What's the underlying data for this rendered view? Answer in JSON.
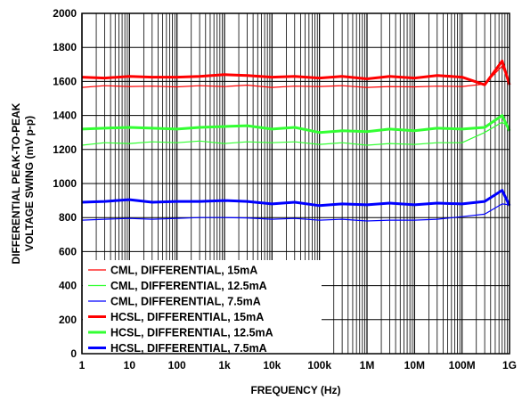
{
  "chart_data": {
    "type": "line",
    "xlabel": "FREQUENCY (Hz)",
    "ylabel_lines": [
      "DIFFERENTIAL PEAK-TO-PEAK",
      "VOLTAGE SWING (mV p-p)"
    ],
    "x_scale": "log",
    "xlim": [
      1,
      1000000000
    ],
    "ylim": [
      0,
      2000
    ],
    "x_tick_values": [
      1,
      10,
      100,
      1000,
      10000,
      100000,
      1000000,
      10000000,
      100000000,
      1000000000
    ],
    "x_tick_labels": [
      "1",
      "10",
      "100",
      "1k",
      "10k",
      "100k",
      "1M",
      "10M",
      "100M",
      "1G"
    ],
    "y_tick_values": [
      0,
      200,
      400,
      600,
      800,
      1000,
      1200,
      1400,
      1600,
      1800,
      2000
    ],
    "y_tick_labels": [
      "0",
      "200",
      "400",
      "600",
      "800",
      "1000",
      "1200",
      "1400",
      "1600",
      "1800",
      "2000"
    ],
    "grid": true,
    "legend_position": "bottom-left",
    "x": [
      1,
      3,
      10,
      30,
      100,
      300,
      1000,
      3000,
      10000,
      30000,
      100000,
      300000,
      1000000,
      3000000,
      10000000,
      30000000,
      100000000,
      300000000,
      700000000,
      1000000000
    ],
    "series": [
      {
        "name": "CML, DIFFERENTIAL, 15mA",
        "color": "#ff0000",
        "width": 1.2,
        "values": [
          1565,
          1575,
          1570,
          1572,
          1568,
          1575,
          1570,
          1578,
          1565,
          1572,
          1570,
          1575,
          1565,
          1570,
          1568,
          1572,
          1570,
          1585,
          1690,
          1595
        ]
      },
      {
        "name": "CML, DIFFERENTIAL, 12.5mA",
        "color": "#33ff33",
        "width": 1.2,
        "values": [
          1225,
          1240,
          1235,
          1245,
          1240,
          1250,
          1235,
          1245,
          1240,
          1245,
          1230,
          1240,
          1225,
          1235,
          1230,
          1240,
          1240,
          1300,
          1360,
          1330
        ]
      },
      {
        "name": "CML, DIFFERENTIAL, 7.5mA",
        "color": "#0000ff",
        "width": 1.2,
        "values": [
          785,
          790,
          795,
          790,
          795,
          800,
          800,
          798,
          790,
          795,
          785,
          790,
          780,
          785,
          785,
          790,
          805,
          820,
          880,
          875
        ]
      },
      {
        "name": "HCSL, DIFFERENTIAL, 15mA",
        "color": "#ff0000",
        "width": 3,
        "values": [
          1625,
          1620,
          1630,
          1625,
          1625,
          1630,
          1640,
          1635,
          1625,
          1630,
          1620,
          1630,
          1615,
          1630,
          1620,
          1635,
          1625,
          1580,
          1720,
          1580
        ]
      },
      {
        "name": "HCSL, DIFFERENTIAL, 12.5mA",
        "color": "#33ff33",
        "width": 3,
        "values": [
          1320,
          1325,
          1330,
          1325,
          1320,
          1330,
          1335,
          1340,
          1320,
          1330,
          1300,
          1310,
          1305,
          1320,
          1310,
          1325,
          1320,
          1330,
          1400,
          1310
        ]
      },
      {
        "name": "HCSL, DIFFERENTIAL, 7.5mA",
        "color": "#0000ff",
        "width": 3,
        "values": [
          890,
          895,
          905,
          890,
          895,
          895,
          900,
          895,
          880,
          890,
          870,
          880,
          875,
          885,
          875,
          885,
          880,
          895,
          960,
          870
        ]
      }
    ]
  }
}
